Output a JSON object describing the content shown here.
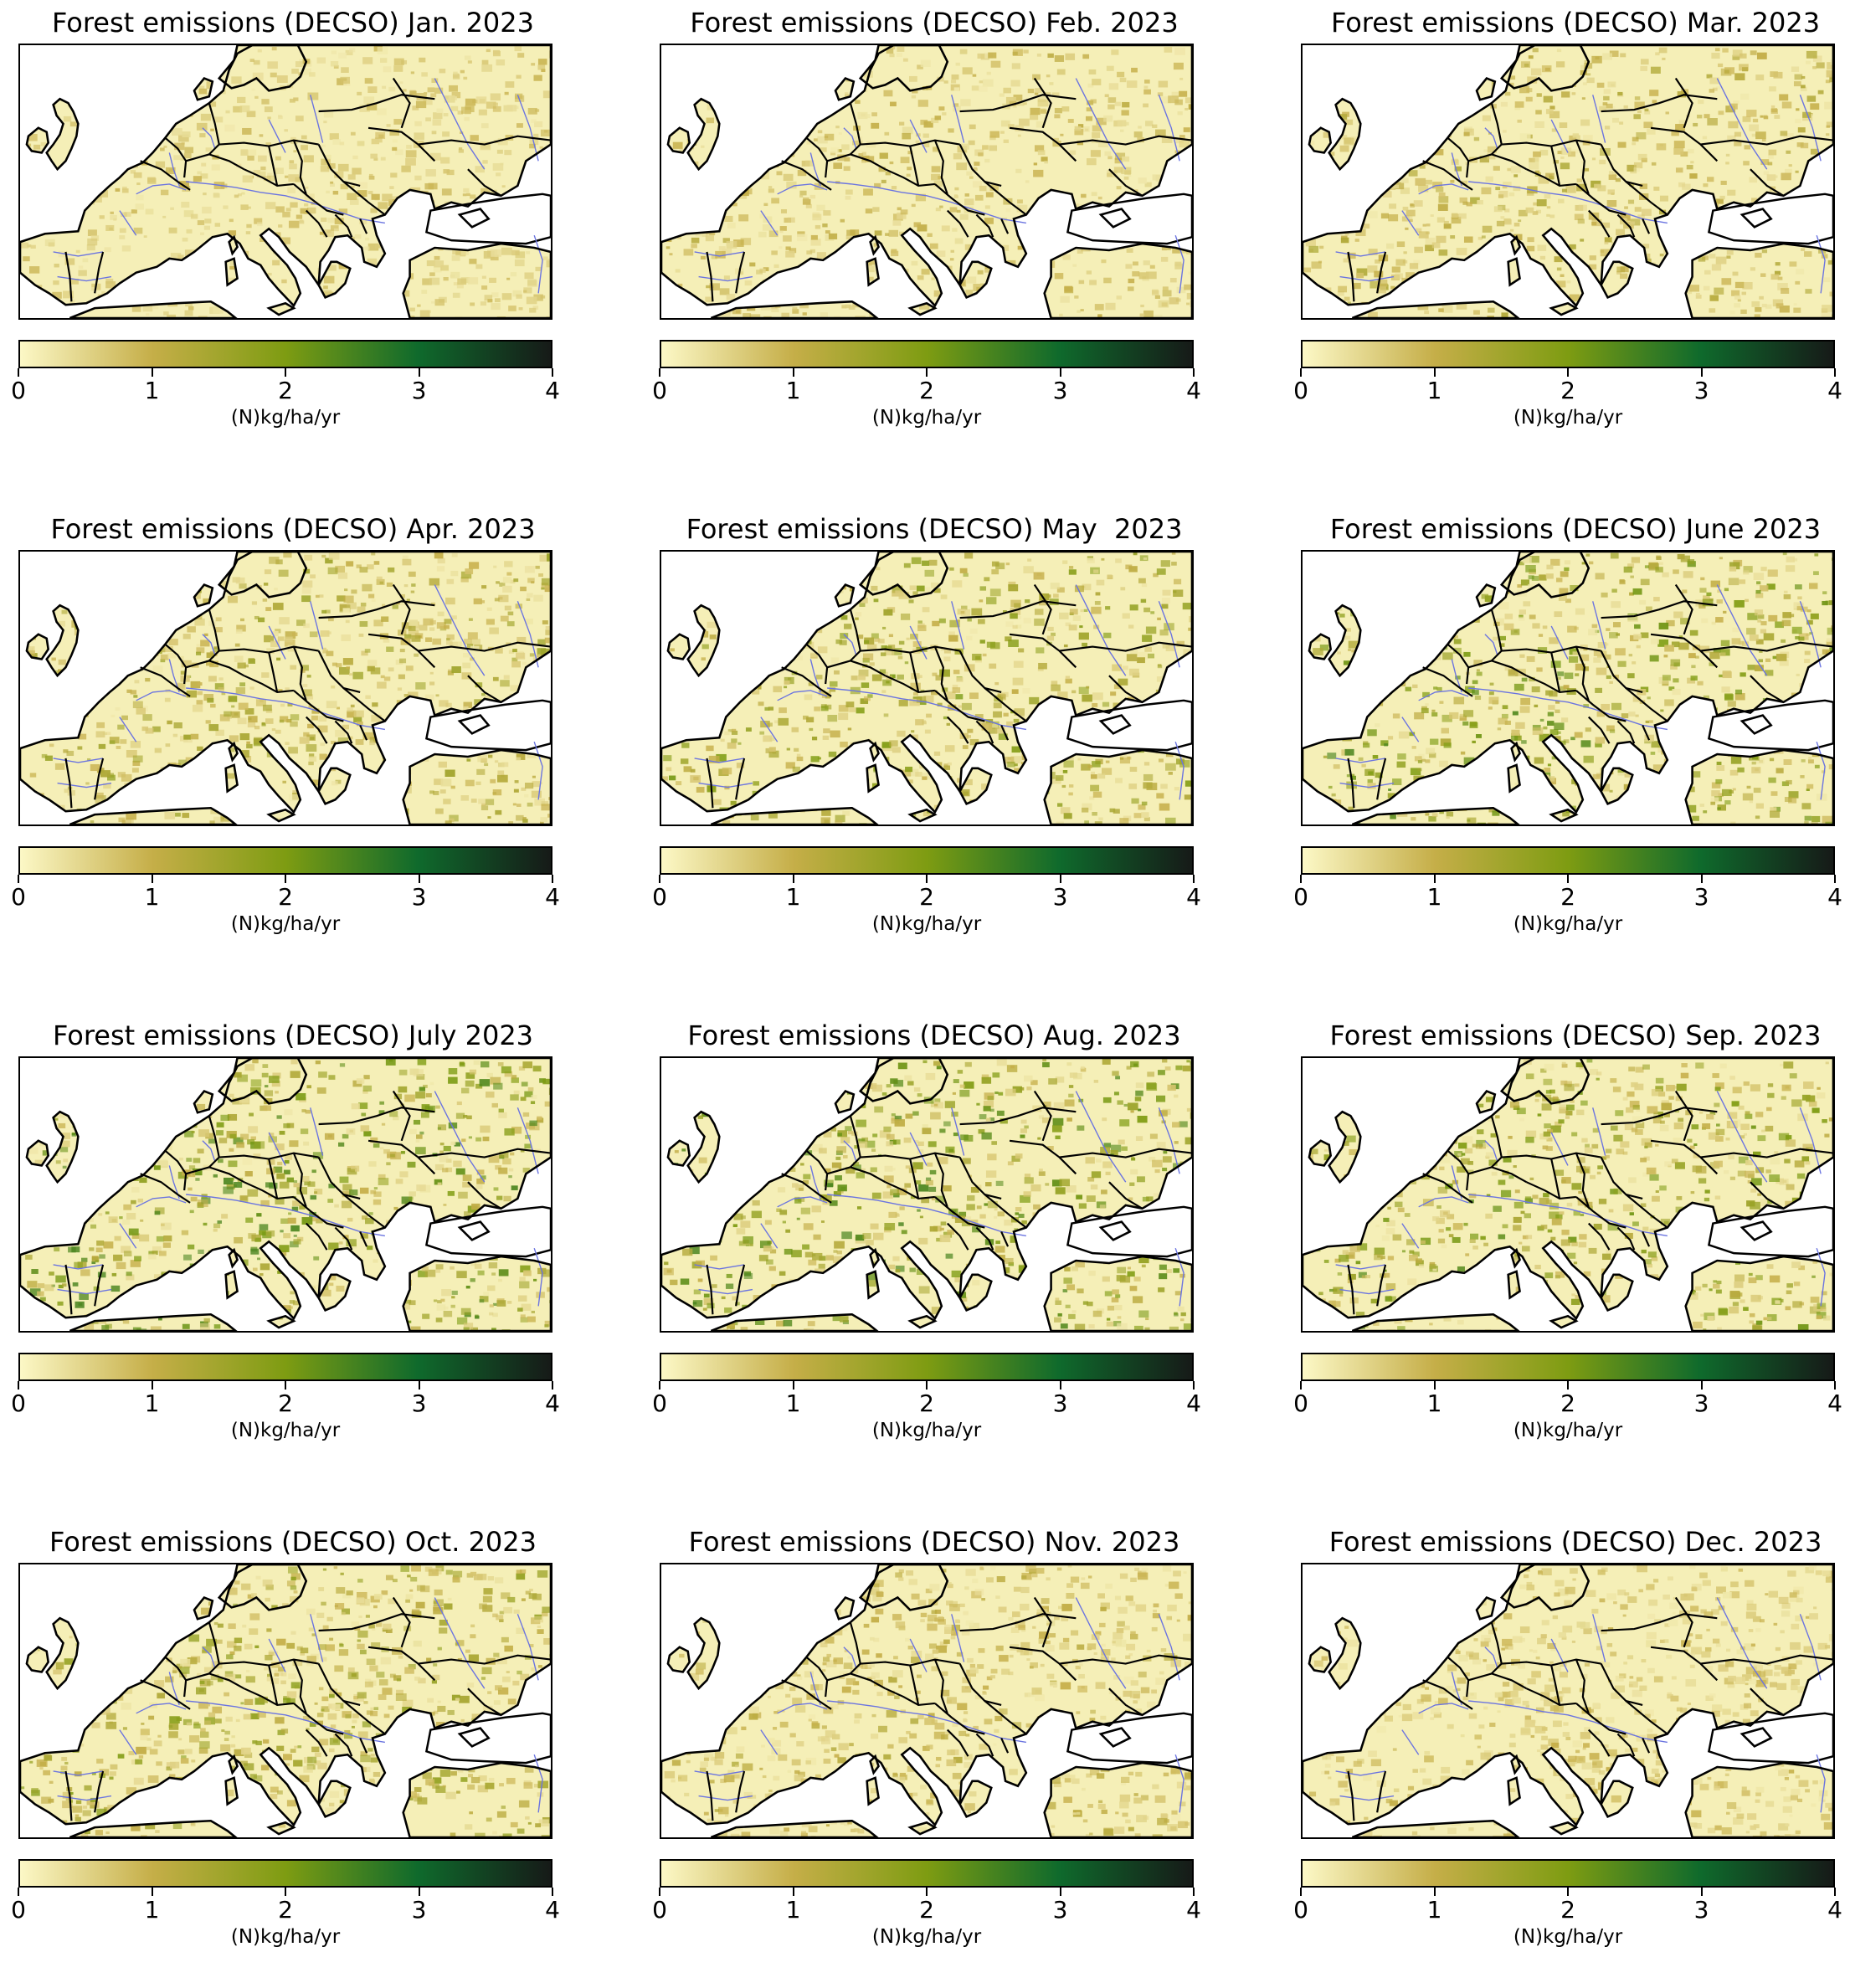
{
  "figure": {
    "colorbar": {
      "min": 0,
      "max": 4,
      "ticks": [
        "0",
        "1",
        "2",
        "3",
        "4"
      ],
      "unit_label": "(N)kg/ha/yr",
      "colors": [
        "#fcf8c6",
        "#c5ae48",
        "#7e9c12",
        "#0f6a2c",
        "#161a18"
      ]
    },
    "panels": [
      {
        "title": "Forest emissions (DECSO) Jan. 2023",
        "month": "Jan",
        "intensity": 0.12
      },
      {
        "title": "Forest emissions (DECSO) Feb. 2023",
        "month": "Feb",
        "intensity": 0.2
      },
      {
        "title": "Forest emissions (DECSO) Mar. 2023",
        "month": "Mar",
        "intensity": 0.28
      },
      {
        "title": "Forest emissions (DECSO) Apr. 2023",
        "month": "Apr",
        "intensity": 0.42
      },
      {
        "title": "Forest emissions (DECSO) May  2023",
        "month": "May",
        "intensity": 0.55
      },
      {
        "title": "Forest emissions (DECSO) June 2023",
        "month": "June",
        "intensity": 0.7
      },
      {
        "title": "Forest emissions (DECSO) July 2023",
        "month": "July",
        "intensity": 0.82
      },
      {
        "title": "Forest emissions (DECSO) Aug. 2023",
        "month": "Aug",
        "intensity": 0.8
      },
      {
        "title": "Forest emissions (DECSO) Sep. 2023",
        "month": "Sep",
        "intensity": 0.66
      },
      {
        "title": "Forest emissions (DECSO) Oct. 2023",
        "month": "Oct",
        "intensity": 0.48
      },
      {
        "title": "Forest emissions (DECSO) Nov. 2023",
        "month": "Nov",
        "intensity": 0.24
      },
      {
        "title": "Forest emissions (DECSO) Dec. 2023",
        "month": "Dec",
        "intensity": 0.14
      }
    ]
  }
}
